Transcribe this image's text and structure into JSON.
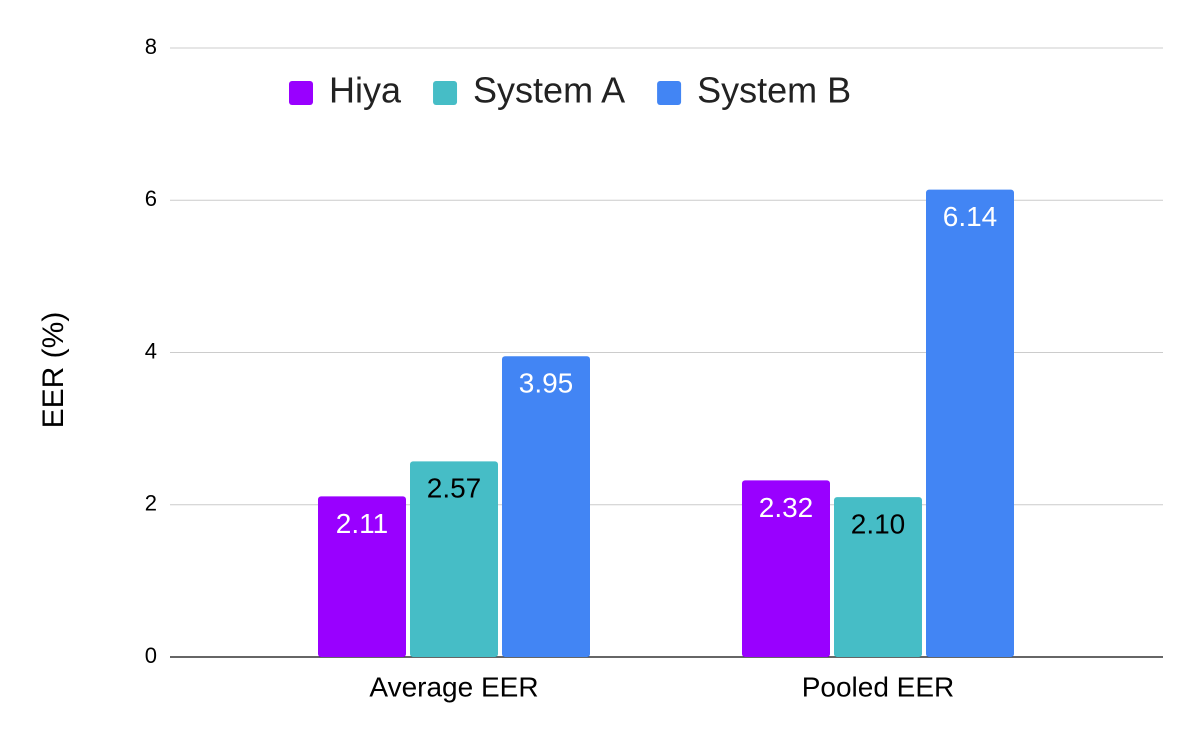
{
  "chart_data": {
    "type": "bar",
    "y_label": "EER (%)",
    "categories": [
      "Average EER",
      "Pooled EER"
    ],
    "series": [
      {
        "name": "Hiya",
        "color": "#9900ff",
        "label_color": "#ffffff",
        "values": [
          2.11,
          2.32
        ],
        "value_labels": [
          "2.11",
          "2.32"
        ]
      },
      {
        "name": "System A",
        "color": "#46bdc6",
        "label_color": "#000000",
        "values": [
          2.57,
          2.1
        ],
        "value_labels": [
          "2.57",
          "2.10"
        ]
      },
      {
        "name": "System B",
        "color": "#4285f4",
        "label_color": "#ffffff",
        "values": [
          3.95,
          6.14
        ],
        "value_labels": [
          "3.95",
          "6.14"
        ]
      }
    ],
    "ylim": [
      0,
      8
    ],
    "yticks": [
      0,
      2,
      4,
      6,
      8
    ],
    "grid": true,
    "legend": "top"
  }
}
